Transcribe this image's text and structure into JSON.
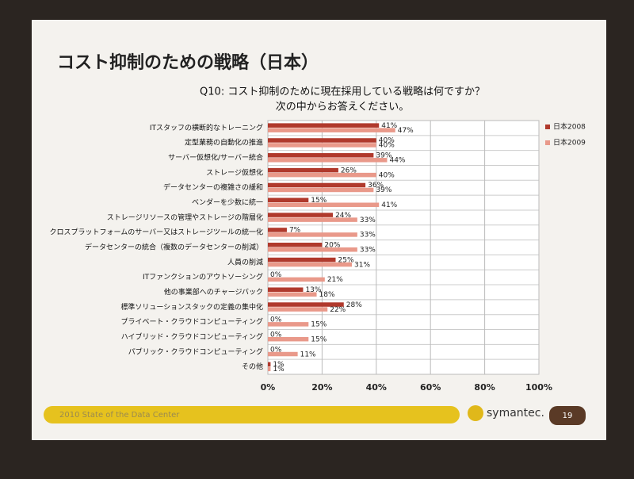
{
  "chart_data": {
    "type": "hbar",
    "title": "コスト抑制のための戦略（日本）",
    "subtitle": [
      "Q10: コスト抑制のために現在採用している戦略は何ですか？",
      "次の中からお答えください。"
    ],
    "categories": [
      "ITスタッフの横断的なトレーニング",
      "定型業務の自動化の推進",
      "サーバー仮想化/サーバー統合",
      "ストレージ仮想化",
      "データセンターの複雑さの緩和",
      "ベンダーを少数に統一",
      "ストレージリソースの管理やストレージの階層化",
      "クロスプラットフォームのサーバー又はストレージツールの統一化",
      "データセンターの統合（複数のデータセンターの削減）",
      "人員の削減",
      "ITファンクションのアウトソーシング",
      "他の事業部へのチャージバック",
      "標準ソリューションスタックの定義の集中化",
      "プライベート・クラウドコンピューティング",
      "ハイブリッド・クラウドコンピューティング",
      "パブリック・クラウドコンピューティング",
      "その他"
    ],
    "series": [
      {
        "name": "日本2008",
        "color": "#b0392c",
        "values": [
          41,
          40,
          39,
          26,
          36,
          15,
          24,
          7,
          20,
          25,
          0,
          13,
          28,
          0,
          0,
          0,
          1
        ],
        "value_labels": [
          "41%",
          "40%",
          "39%",
          "26%",
          "36%",
          "15%",
          "24%",
          "7%",
          "20%",
          "25%",
          "0%",
          "13%",
          "28%",
          "0%",
          "0%",
          "0%",
          "1%"
        ]
      },
      {
        "name": "日本2009",
        "color": "#e9998a",
        "values": [
          47,
          40,
          44,
          40,
          39,
          41,
          33,
          33,
          33,
          31,
          21,
          18,
          22,
          15,
          15,
          11,
          1
        ],
        "value_labels": [
          "47%",
          "40%",
          "44%",
          "40%",
          "39%",
          "41%",
          "33%",
          "33%",
          "33%",
          "31%",
          "21%",
          "18%",
          "22%",
          "15%",
          "15%",
          "11%",
          "1%"
        ]
      }
    ],
    "xlim": [
      0,
      100
    ],
    "xticks": [
      {
        "value": 0,
        "label": "0%"
      },
      {
        "value": 20,
        "label": "20%"
      },
      {
        "value": 40,
        "label": "40%"
      },
      {
        "value": 60,
        "label": "60%"
      },
      {
        "value": 80,
        "label": "80%"
      },
      {
        "value": 100,
        "label": "100%"
      }
    ],
    "grid": true,
    "legend": "right"
  },
  "slide": {
    "footer": "2010 State of the Data Center",
    "brand": "symantec.",
    "page": "19"
  }
}
